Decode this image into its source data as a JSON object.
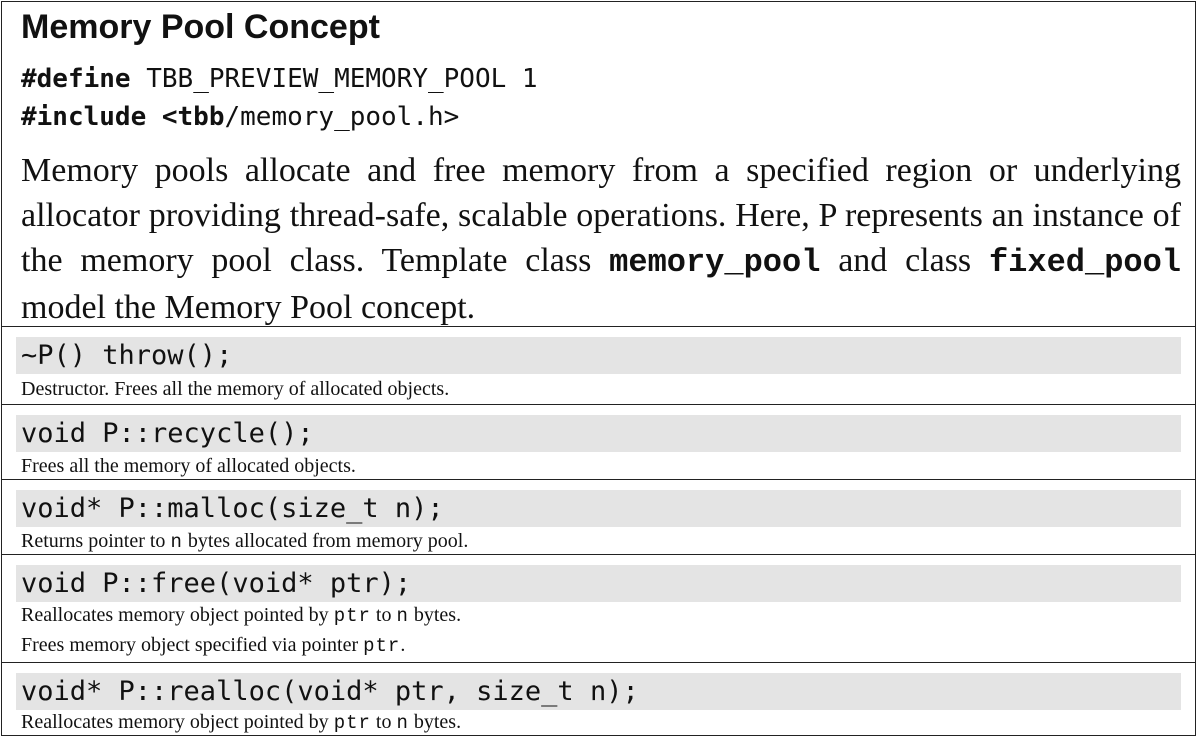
{
  "title": "Memory Pool Concept",
  "code": {
    "line1_kw": "#define",
    "line1_rest": " TBB_PREVIEW_MEMORY_POOL 1",
    "line2_kw": "#include <tbb",
    "line2_rest": "/memory_pool.h>"
  },
  "description": {
    "part1": "Memory pools allocate and free memory from a specified region or underlying allocator providing thread-safe, scalable operations. Here, P represents an instance of the memory pool class. Template class ",
    "code1": "memory_pool",
    "part2": " and class ",
    "code2": "fixed_pool",
    "part3": " model the Memory Pool concept."
  },
  "entries": [
    {
      "signature": "~P() throw();",
      "note": "Destructor. Frees all the memory of allocated objects."
    },
    {
      "signature": "void P::recycle();",
      "note": "Frees all the memory of allocated objects."
    },
    {
      "signature": "void* P::malloc(size_t n);",
      "note_a": "Returns pointer to ",
      "note_code": "n",
      "note_b": " bytes allocated from memory pool."
    },
    {
      "signature": "void P::free(void* ptr);",
      "note1_a": "Reallocates memory object pointed by ",
      "note1_code1": "ptr",
      "note1_b": " to ",
      "note1_code2": "n",
      "note1_c": "  bytes.",
      "note2_a": "Frees memory object specified via pointer ",
      "note2_code": "ptr",
      "note2_b": "."
    },
    {
      "signature": "void* P::realloc(void* ptr, size_t n);",
      "note_a": "Reallocates memory object pointed by ",
      "note_code1": "ptr",
      "note_b": " to ",
      "note_code2": "n",
      "note_c": " bytes."
    }
  ]
}
